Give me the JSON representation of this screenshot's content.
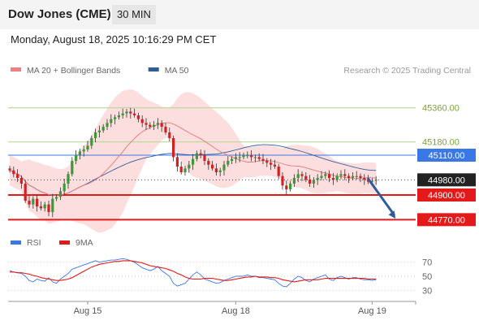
{
  "header": {
    "title": "Dow Jones (CME)",
    "timeframe": "30 MIN"
  },
  "timestamp": "Monday, August 18, 2025 10:16:29 PM CET",
  "chart_data": [
    {
      "type": "candlestick",
      "legend": [
        {
          "label": "MA 20 + Bollinger Bands",
          "color": "#f08080"
        },
        {
          "label": "MA 50",
          "color": "#2f5d9c"
        }
      ],
      "credit": "Research © 2025 Trading Central",
      "ylim": [
        44700,
        45450
      ],
      "levels": [
        {
          "value": 45360,
          "label": "45360.00",
          "kind": "target",
          "color": "#b8d89a",
          "text_color": "#7aa33a"
        },
        {
          "value": 45180,
          "label": "45180.00",
          "kind": "target",
          "color": "#b8d89a",
          "text_color": "#7aa33a"
        },
        {
          "value": 45110,
          "label": "45110.00",
          "kind": "resistance",
          "color": "#3b78e7"
        },
        {
          "value": 44980,
          "label": "44980.00",
          "kind": "last",
          "color": "#222222"
        },
        {
          "value": 44900,
          "label": "44900.00",
          "kind": "support",
          "color": "#e41a1a"
        },
        {
          "value": 44770,
          "label": "44770.00",
          "kind": "support",
          "color": "#e41a1a"
        }
      ],
      "x_ticks": [
        {
          "label": "Aug 15",
          "index": 20
        },
        {
          "label": "Aug 18",
          "index": 58
        },
        {
          "label": "Aug 19",
          "index": 93
        }
      ],
      "projection": {
        "from_index": 92,
        "from_value": 44985,
        "to_index": 99,
        "to_value": 44775
      },
      "close": [
        45030,
        45010,
        44990,
        44960,
        44870,
        44850,
        44880,
        44840,
        44830,
        44850,
        44810,
        44880,
        44890,
        44920,
        44960,
        45010,
        45080,
        45110,
        45130,
        45140,
        45160,
        45200,
        45230,
        45240,
        45260,
        45280,
        45300,
        45310,
        45320,
        45330,
        45340,
        45330,
        45320,
        45300,
        45280,
        45270,
        45260,
        45270,
        45280,
        45260,
        45230,
        45200,
        45100,
        45050,
        45020,
        45040,
        45060,
        45090,
        45120,
        45110,
        45080,
        45060,
        45040,
        45020,
        45030,
        45060,
        45080,
        45090,
        45100,
        45100,
        45110,
        45110,
        45100,
        45100,
        45090,
        45080,
        45070,
        45060,
        45050,
        45000,
        44950,
        44930,
        44960,
        44990,
        45010,
        45000,
        44980,
        44960,
        44980,
        44990,
        45000,
        45010,
        44990,
        44980,
        45000,
        45010,
        45000,
        44990,
        45000,
        45000,
        44990,
        44980,
        44970,
        44975,
        44980
      ]
    },
    {
      "type": "line",
      "legend": [
        {
          "label": "RSI",
          "color": "#3b78e7"
        },
        {
          "label": "9MA",
          "color": "#e41a1a"
        }
      ],
      "ylim": [
        20,
        80
      ],
      "y_ticks": [
        70,
        50,
        30
      ],
      "series": [
        {
          "name": "RSI",
          "values": [
            58,
            56,
            55,
            54,
            50,
            44,
            42,
            46,
            44,
            43,
            48,
            42,
            40,
            46,
            50,
            54,
            60,
            62,
            64,
            66,
            68,
            70,
            72,
            70,
            71,
            72,
            73,
            73,
            74,
            75,
            74,
            72,
            70,
            66,
            62,
            60,
            58,
            60,
            64,
            58,
            54,
            50,
            40,
            36,
            38,
            40,
            46,
            52,
            56,
            52,
            46,
            44,
            42,
            40,
            41,
            44,
            46,
            48,
            50,
            50,
            50,
            52,
            50,
            50,
            48,
            48,
            47,
            46,
            45,
            40,
            36,
            35,
            40,
            46,
            50,
            48,
            44,
            42,
            46,
            48,
            50,
            52,
            46,
            44,
            48,
            50,
            48,
            46,
            48,
            48,
            46,
            45,
            45,
            44,
            45
          ]
        },
        {
          "name": "9MA",
          "values": [
            56,
            56,
            55,
            55,
            54,
            53,
            51,
            50,
            48,
            47,
            46,
            45,
            44,
            44,
            45,
            46,
            48,
            51,
            54,
            57,
            60,
            63,
            65,
            67,
            68,
            69,
            70,
            71,
            71,
            72,
            72,
            72,
            71,
            70,
            69,
            67,
            65,
            64,
            63,
            62,
            61,
            59,
            57,
            54,
            52,
            49,
            47,
            46,
            46,
            46,
            47,
            47,
            47,
            46,
            45,
            44,
            44,
            45,
            46,
            47,
            48,
            49,
            49,
            50,
            49,
            49,
            49,
            48,
            48,
            47,
            45,
            44,
            43,
            42,
            43,
            44,
            45,
            45,
            45,
            45,
            46,
            47,
            47,
            47,
            47,
            47,
            47,
            47,
            47,
            47,
            47,
            47,
            46,
            46,
            46
          ]
        }
      ]
    }
  ]
}
